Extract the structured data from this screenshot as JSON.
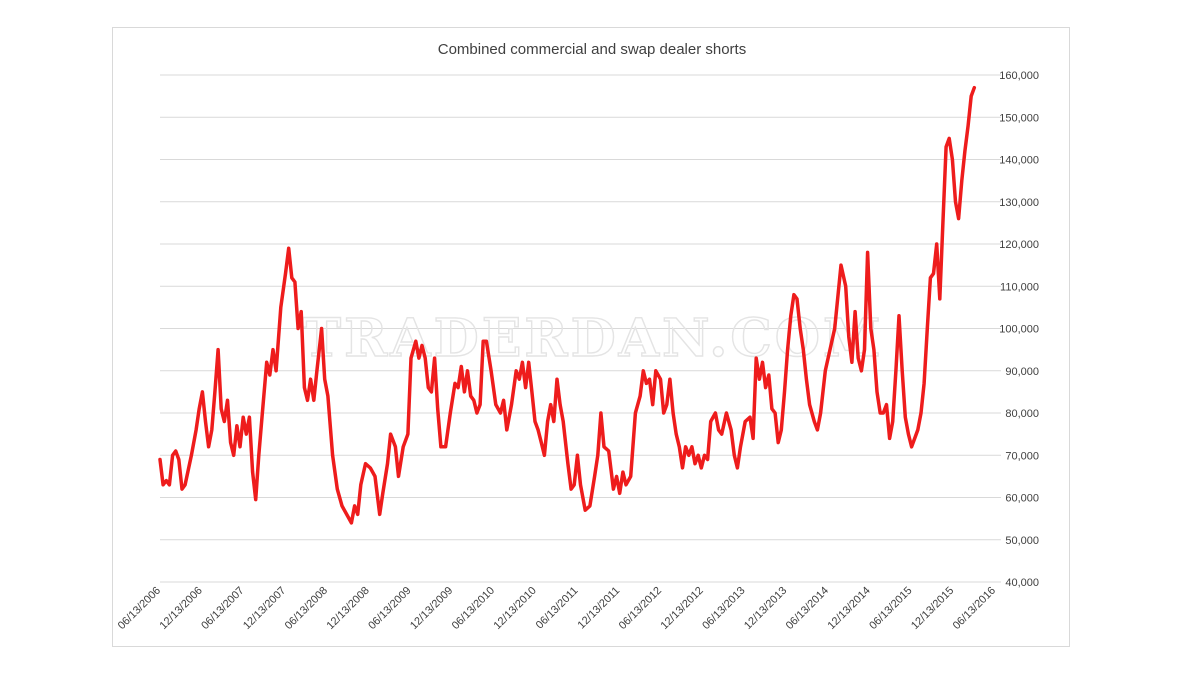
{
  "watermark": "TRADERDAN.COM",
  "colors": {
    "line": "#ee1c1c",
    "grid": "#d9d9d9",
    "text": "#404040"
  },
  "chart_data": {
    "type": "line",
    "title": "Combined commercial and swap dealer shorts",
    "xlabel": "",
    "ylabel": "",
    "ylim": [
      40000,
      160000
    ],
    "yticks": [
      40000,
      50000,
      60000,
      70000,
      80000,
      90000,
      100000,
      110000,
      120000,
      130000,
      140000,
      150000,
      160000
    ],
    "ytick_labels": [
      "40,000",
      "50,000",
      "60,000",
      "70,000",
      "80,000",
      "90,000",
      "100,000",
      "110,000",
      "120,000",
      "130,000",
      "140,000",
      "150,000",
      "160,000"
    ],
    "xlim": [
      "2006-06-13",
      "2016-09-20"
    ],
    "xtick_labels": [
      "06/13/2006",
      "12/13/2006",
      "06/13/2007",
      "12/13/2007",
      "06/13/2008",
      "12/13/2008",
      "06/13/2009",
      "12/13/2009",
      "06/13/2010",
      "12/13/2010",
      "06/13/2011",
      "12/13/2011",
      "06/13/2012",
      "12/13/2012",
      "06/13/2013",
      "12/13/2013",
      "06/13/2014",
      "12/13/2014",
      "06/13/2015",
      "12/13/2015",
      "06/13/2016"
    ],
    "grid": true,
    "legend": "none",
    "series": [
      {
        "color": "#ee1c1c",
        "points": [
          [
            "2006-06-13",
            69000
          ],
          [
            "2006-06-27",
            63000
          ],
          [
            "2006-07-11",
            64000
          ],
          [
            "2006-07-25",
            63000
          ],
          [
            "2006-08-08",
            70000
          ],
          [
            "2006-08-22",
            71000
          ],
          [
            "2006-09-05",
            69000
          ],
          [
            "2006-09-19",
            62000
          ],
          [
            "2006-10-03",
            63000
          ],
          [
            "2006-10-31",
            70000
          ],
          [
            "2006-11-21",
            76000
          ],
          [
            "2006-12-05",
            81000
          ],
          [
            "2006-12-19",
            85000
          ],
          [
            "2007-01-02",
            78000
          ],
          [
            "2007-01-16",
            72000
          ],
          [
            "2007-01-30",
            76000
          ],
          [
            "2007-02-13",
            85000
          ],
          [
            "2007-02-27",
            95000
          ],
          [
            "2007-03-13",
            81000
          ],
          [
            "2007-03-27",
            78000
          ],
          [
            "2007-04-10",
            83000
          ],
          [
            "2007-04-24",
            73000
          ],
          [
            "2007-05-08",
            70000
          ],
          [
            "2007-05-22",
            77000
          ],
          [
            "2007-06-05",
            72000
          ],
          [
            "2007-06-19",
            79000
          ],
          [
            "2007-07-03",
            75000
          ],
          [
            "2007-07-17",
            79000
          ],
          [
            "2007-07-31",
            66000
          ],
          [
            "2007-08-14",
            59500
          ],
          [
            "2007-08-28",
            70000
          ],
          [
            "2007-09-11",
            79000
          ],
          [
            "2007-10-02",
            92000
          ],
          [
            "2007-10-16",
            89000
          ],
          [
            "2007-10-30",
            95000
          ],
          [
            "2007-11-13",
            90000
          ],
          [
            "2007-12-04",
            105000
          ],
          [
            "2007-12-25",
            113000
          ],
          [
            "2008-01-08",
            119000
          ],
          [
            "2008-01-22",
            112000
          ],
          [
            "2008-02-05",
            111000
          ],
          [
            "2008-02-19",
            100000
          ],
          [
            "2008-03-04",
            104000
          ],
          [
            "2008-03-18",
            86000
          ],
          [
            "2008-04-01",
            83000
          ],
          [
            "2008-04-15",
            88000
          ],
          [
            "2008-04-29",
            83000
          ],
          [
            "2008-05-13",
            90000
          ],
          [
            "2008-06-03",
            100000
          ],
          [
            "2008-06-17",
            88000
          ],
          [
            "2008-07-01",
            84000
          ],
          [
            "2008-07-22",
            70000
          ],
          [
            "2008-08-12",
            62000
          ],
          [
            "2008-09-02",
            58000
          ],
          [
            "2008-09-23",
            56000
          ],
          [
            "2008-10-14",
            54000
          ],
          [
            "2008-10-28",
            58000
          ],
          [
            "2008-11-11",
            56000
          ],
          [
            "2008-11-25",
            63000
          ],
          [
            "2008-12-16",
            68000
          ],
          [
            "2009-01-06",
            67000
          ],
          [
            "2009-01-27",
            65000
          ],
          [
            "2009-02-17",
            56000
          ],
          [
            "2009-03-03",
            61000
          ],
          [
            "2009-03-24",
            68000
          ],
          [
            "2009-04-07",
            75000
          ],
          [
            "2009-04-28",
            72000
          ],
          [
            "2009-05-12",
            65000
          ],
          [
            "2009-06-02",
            72000
          ],
          [
            "2009-06-23",
            75000
          ],
          [
            "2009-07-07",
            93000
          ],
          [
            "2009-07-28",
            97000
          ],
          [
            "2009-08-11",
            93000
          ],
          [
            "2009-08-25",
            96000
          ],
          [
            "2009-09-08",
            93000
          ],
          [
            "2009-09-22",
            86000
          ],
          [
            "2009-10-06",
            85000
          ],
          [
            "2009-10-20",
            93000
          ],
          [
            "2009-11-03",
            81000
          ],
          [
            "2009-11-17",
            72000
          ],
          [
            "2009-12-08",
            72000
          ],
          [
            "2009-12-29",
            80000
          ],
          [
            "2010-01-19",
            87000
          ],
          [
            "2010-02-02",
            86000
          ],
          [
            "2010-02-16",
            91000
          ],
          [
            "2010-03-02",
            85000
          ],
          [
            "2010-03-16",
            90000
          ],
          [
            "2010-03-30",
            84000
          ],
          [
            "2010-04-13",
            83000
          ],
          [
            "2010-04-27",
            80000
          ],
          [
            "2010-05-11",
            82000
          ],
          [
            "2010-05-25",
            97000
          ],
          [
            "2010-06-08",
            97000
          ],
          [
            "2010-06-29",
            90000
          ],
          [
            "2010-07-20",
            82000
          ],
          [
            "2010-08-10",
            80000
          ],
          [
            "2010-08-24",
            83000
          ],
          [
            "2010-09-07",
            76000
          ],
          [
            "2010-09-28",
            82000
          ],
          [
            "2010-10-19",
            90000
          ],
          [
            "2010-11-02",
            88000
          ],
          [
            "2010-11-16",
            92000
          ],
          [
            "2010-11-30",
            86000
          ],
          [
            "2010-12-14",
            92000
          ],
          [
            "2010-12-28",
            85000
          ],
          [
            "2011-01-11",
            78000
          ],
          [
            "2011-01-25",
            76000
          ],
          [
            "2011-02-08",
            73000
          ],
          [
            "2011-02-22",
            70000
          ],
          [
            "2011-03-08",
            78000
          ],
          [
            "2011-03-22",
            82000
          ],
          [
            "2011-04-05",
            78000
          ],
          [
            "2011-04-19",
            88000
          ],
          [
            "2011-05-03",
            82000
          ],
          [
            "2011-05-17",
            78000
          ],
          [
            "2011-06-07",
            68000
          ],
          [
            "2011-06-21",
            62000
          ],
          [
            "2011-07-05",
            63000
          ],
          [
            "2011-07-19",
            70000
          ],
          [
            "2011-08-02",
            63000
          ],
          [
            "2011-08-23",
            57000
          ],
          [
            "2011-09-13",
            58000
          ],
          [
            "2011-10-04",
            65000
          ],
          [
            "2011-10-18",
            70000
          ],
          [
            "2011-11-01",
            80000
          ],
          [
            "2011-11-15",
            72000
          ],
          [
            "2011-12-06",
            71000
          ],
          [
            "2011-12-27",
            62000
          ],
          [
            "2012-01-10",
            65000
          ],
          [
            "2012-01-24",
            61000
          ],
          [
            "2012-02-07",
            66000
          ],
          [
            "2012-02-21",
            63000
          ],
          [
            "2012-03-13",
            65000
          ],
          [
            "2012-04-03",
            80000
          ],
          [
            "2012-04-24",
            84000
          ],
          [
            "2012-05-08",
            90000
          ],
          [
            "2012-05-22",
            87000
          ],
          [
            "2012-06-05",
            88000
          ],
          [
            "2012-06-19",
            82000
          ],
          [
            "2012-07-03",
            90000
          ],
          [
            "2012-07-24",
            88000
          ],
          [
            "2012-08-07",
            80000
          ],
          [
            "2012-08-21",
            82000
          ],
          [
            "2012-09-04",
            88000
          ],
          [
            "2012-09-18",
            80000
          ],
          [
            "2012-10-02",
            75000
          ],
          [
            "2012-10-16",
            72000
          ],
          [
            "2012-10-30",
            67000
          ],
          [
            "2012-11-13",
            72000
          ],
          [
            "2012-11-27",
            70000
          ],
          [
            "2012-12-11",
            72000
          ],
          [
            "2012-12-25",
            68000
          ],
          [
            "2013-01-08",
            70000
          ],
          [
            "2013-01-22",
            67000
          ],
          [
            "2013-02-05",
            70000
          ],
          [
            "2013-02-19",
            69000
          ],
          [
            "2013-03-05",
            78000
          ],
          [
            "2013-03-26",
            80000
          ],
          [
            "2013-04-09",
            76000
          ],
          [
            "2013-04-23",
            75000
          ],
          [
            "2013-05-14",
            80000
          ],
          [
            "2013-06-04",
            76000
          ],
          [
            "2013-06-18",
            70000
          ],
          [
            "2013-07-02",
            67000
          ],
          [
            "2013-07-16",
            72000
          ],
          [
            "2013-08-06",
            78000
          ],
          [
            "2013-08-27",
            79000
          ],
          [
            "2013-09-10",
            74000
          ],
          [
            "2013-09-24",
            93000
          ],
          [
            "2013-10-08",
            88000
          ],
          [
            "2013-10-22",
            92000
          ],
          [
            "2013-11-05",
            86000
          ],
          [
            "2013-11-19",
            89000
          ],
          [
            "2013-12-03",
            81000
          ],
          [
            "2013-12-17",
            80000
          ],
          [
            "2013-12-31",
            73000
          ],
          [
            "2014-01-14",
            76000
          ],
          [
            "2014-01-28",
            85000
          ],
          [
            "2014-02-11",
            95000
          ],
          [
            "2014-02-25",
            103000
          ],
          [
            "2014-03-11",
            108000
          ],
          [
            "2014-03-25",
            107000
          ],
          [
            "2014-04-08",
            100000
          ],
          [
            "2014-04-22",
            95000
          ],
          [
            "2014-05-06",
            88000
          ],
          [
            "2014-05-20",
            82000
          ],
          [
            "2014-06-10",
            78000
          ],
          [
            "2014-06-24",
            76000
          ],
          [
            "2014-07-08",
            80000
          ],
          [
            "2014-07-29",
            90000
          ],
          [
            "2014-08-19",
            95000
          ],
          [
            "2014-09-09",
            100000
          ],
          [
            "2014-10-07",
            115000
          ],
          [
            "2014-10-28",
            110000
          ],
          [
            "2014-11-11",
            98000
          ],
          [
            "2014-11-25",
            92000
          ],
          [
            "2014-12-09",
            104000
          ],
          [
            "2014-12-23",
            93000
          ],
          [
            "2015-01-06",
            90000
          ],
          [
            "2015-01-20",
            95000
          ],
          [
            "2015-02-03",
            118000
          ],
          [
            "2015-02-17",
            100000
          ],
          [
            "2015-03-03",
            95000
          ],
          [
            "2015-03-17",
            85000
          ],
          [
            "2015-03-31",
            80000
          ],
          [
            "2015-04-14",
            80000
          ],
          [
            "2015-04-28",
            82000
          ],
          [
            "2015-05-12",
            74000
          ],
          [
            "2015-05-26",
            78000
          ],
          [
            "2015-06-09",
            90000
          ],
          [
            "2015-06-23",
            103000
          ],
          [
            "2015-07-07",
            90000
          ],
          [
            "2015-07-21",
            79000
          ],
          [
            "2015-08-04",
            75000
          ],
          [
            "2015-08-18",
            72000
          ],
          [
            "2015-09-01",
            74000
          ],
          [
            "2015-09-15",
            76000
          ],
          [
            "2015-09-29",
            80000
          ],
          [
            "2015-10-13",
            87000
          ],
          [
            "2015-10-27",
            100000
          ],
          [
            "2015-11-10",
            112000
          ],
          [
            "2015-11-24",
            113000
          ],
          [
            "2015-12-08",
            120000
          ],
          [
            "2015-12-22",
            107000
          ],
          [
            "2016-01-05",
            125000
          ],
          [
            "2016-01-19",
            143000
          ],
          [
            "2016-02-02",
            145000
          ],
          [
            "2016-02-16",
            140000
          ],
          [
            "2016-03-01",
            130000
          ],
          [
            "2016-03-15",
            126000
          ],
          [
            "2016-03-29",
            135000
          ],
          [
            "2016-04-12",
            142000
          ],
          [
            "2016-04-26",
            148000
          ],
          [
            "2016-05-10",
            155000
          ],
          [
            "2016-05-24",
            157000
          ]
        ]
      }
    ]
  }
}
